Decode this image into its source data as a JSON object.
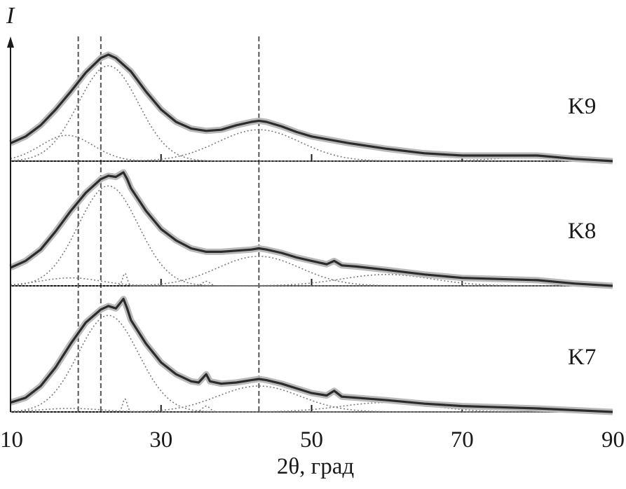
{
  "chart_data": {
    "type": "line",
    "xlabel": "2θ, град",
    "ylabel": "I",
    "xlim": [
      10,
      90
    ],
    "x_ticks": [
      "10",
      "30",
      "50",
      "70",
      "90"
    ],
    "y_ticks_shown": false,
    "grid": false,
    "reference_lines_2theta": [
      19,
      22,
      43
    ],
    "panels": [
      {
        "label": "K9",
        "fit_curve": [
          [
            10,
            0.16
          ],
          [
            12,
            0.22
          ],
          [
            14,
            0.32
          ],
          [
            16,
            0.46
          ],
          [
            18,
            0.62
          ],
          [
            20,
            0.79
          ],
          [
            22,
            0.92
          ],
          [
            23,
            0.95
          ],
          [
            24,
            0.92
          ],
          [
            26,
            0.8
          ],
          [
            28,
            0.62
          ],
          [
            30,
            0.46
          ],
          [
            32,
            0.35
          ],
          [
            34,
            0.29
          ],
          [
            36,
            0.27
          ],
          [
            38,
            0.28
          ],
          [
            40,
            0.32
          ],
          [
            42,
            0.35
          ],
          [
            43,
            0.36
          ],
          [
            44,
            0.35
          ],
          [
            46,
            0.31
          ],
          [
            48,
            0.26
          ],
          [
            50,
            0.22
          ],
          [
            55,
            0.16
          ],
          [
            60,
            0.11
          ],
          [
            65,
            0.07
          ],
          [
            70,
            0.05
          ],
          [
            75,
            0.05
          ],
          [
            80,
            0.05
          ],
          [
            85,
            0.02
          ],
          [
            90,
            0.0
          ]
        ],
        "components": [
          {
            "center": 17.5,
            "height": 0.23,
            "width": 3.5
          },
          {
            "center": 23.0,
            "height": 0.85,
            "width": 4.0
          },
          {
            "center": 43.0,
            "height": 0.28,
            "width": 5.5
          },
          {
            "center": 80.0,
            "height": 0.04,
            "width": 5.0
          }
        ]
      },
      {
        "label": "K8",
        "fit_curve": [
          [
            10,
            0.16
          ],
          [
            12,
            0.22
          ],
          [
            14,
            0.32
          ],
          [
            16,
            0.48
          ],
          [
            18,
            0.66
          ],
          [
            20,
            0.82
          ],
          [
            22,
            0.94
          ],
          [
            23,
            0.97
          ],
          [
            24,
            0.96
          ],
          [
            25,
            1.0
          ],
          [
            25.5,
            0.94
          ],
          [
            26,
            0.86
          ],
          [
            28,
            0.66
          ],
          [
            30,
            0.5
          ],
          [
            32,
            0.4
          ],
          [
            34,
            0.33
          ],
          [
            36,
            0.3
          ],
          [
            38,
            0.3
          ],
          [
            40,
            0.31
          ],
          [
            42,
            0.32
          ],
          [
            43,
            0.33
          ],
          [
            44,
            0.32
          ],
          [
            46,
            0.29
          ],
          [
            48,
            0.25
          ],
          [
            50,
            0.22
          ],
          [
            52,
            0.19
          ],
          [
            53,
            0.22
          ],
          [
            54,
            0.18
          ],
          [
            56,
            0.17
          ],
          [
            60,
            0.14
          ],
          [
            65,
            0.1
          ],
          [
            70,
            0.07
          ],
          [
            75,
            0.06
          ],
          [
            80,
            0.05
          ],
          [
            85,
            0.02
          ],
          [
            90,
            0.0
          ]
        ],
        "components": [
          {
            "center": 18.0,
            "height": 0.07,
            "width": 4.0
          },
          {
            "center": 23.0,
            "height": 0.88,
            "width": 4.0
          },
          {
            "center": 25.2,
            "height": 0.11,
            "width": 0.3
          },
          {
            "center": 36.0,
            "height": 0.04,
            "width": 0.5
          },
          {
            "center": 43.0,
            "height": 0.26,
            "width": 5.5
          },
          {
            "center": 60.0,
            "height": 0.1,
            "width": 6.0
          }
        ]
      },
      {
        "label": "K7",
        "fit_curve": [
          [
            10,
            0.08
          ],
          [
            12,
            0.12
          ],
          [
            14,
            0.22
          ],
          [
            16,
            0.38
          ],
          [
            18,
            0.58
          ],
          [
            20,
            0.76
          ],
          [
            22,
            0.87
          ],
          [
            23,
            0.9
          ],
          [
            24,
            0.88
          ],
          [
            25,
            0.96
          ],
          [
            25.5,
            0.88
          ],
          [
            26,
            0.78
          ],
          [
            28,
            0.58
          ],
          [
            30,
            0.42
          ],
          [
            32,
            0.32
          ],
          [
            34,
            0.26
          ],
          [
            35,
            0.25
          ],
          [
            36,
            0.32
          ],
          [
            36.5,
            0.26
          ],
          [
            38,
            0.24
          ],
          [
            40,
            0.25
          ],
          [
            42,
            0.27
          ],
          [
            43,
            0.28
          ],
          [
            44,
            0.27
          ],
          [
            46,
            0.24
          ],
          [
            48,
            0.2
          ],
          [
            50,
            0.16
          ],
          [
            52,
            0.14
          ],
          [
            53,
            0.18
          ],
          [
            54,
            0.13
          ],
          [
            56,
            0.12
          ],
          [
            60,
            0.1
          ],
          [
            65,
            0.07
          ],
          [
            70,
            0.05
          ],
          [
            75,
            0.04
          ],
          [
            80,
            0.03
          ],
          [
            85,
            0.015
          ],
          [
            90,
            0.0
          ]
        ],
        "components": [
          {
            "center": 18.0,
            "height": 0.03,
            "width": 4.0
          },
          {
            "center": 23.0,
            "height": 0.82,
            "width": 4.0
          },
          {
            "center": 25.2,
            "height": 0.11,
            "width": 0.3
          },
          {
            "center": 36.0,
            "height": 0.05,
            "width": 0.5
          },
          {
            "center": 43.0,
            "height": 0.22,
            "width": 5.5
          },
          {
            "center": 60.0,
            "height": 0.08,
            "width": 6.0
          }
        ]
      }
    ]
  },
  "colors": {
    "fit": "#2b2b2b",
    "raw_band": "#b9b9b9",
    "component": "#7a7a7a",
    "reference": "#555555",
    "axis": "#1a1a1a"
  }
}
